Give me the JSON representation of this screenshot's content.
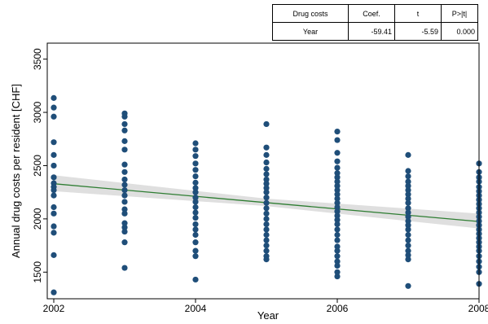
{
  "stat_table": {
    "headers": [
      "Drug costs",
      "Coef.",
      "t",
      "P>|t|"
    ],
    "row": [
      "Year",
      "-59.41",
      "-5.59",
      "0.000"
    ]
  },
  "colors": {
    "points": "#1f4e79",
    "fit_line": "#2e7d32",
    "ci_band": "#d9d9d9",
    "axis": "#000000"
  },
  "chart_data": {
    "type": "scatter",
    "title": "",
    "xlabel": "Year",
    "ylabel": "Annual drug costs per resident [CHF]",
    "xlim": [
      2002,
      2008
    ],
    "ylim": [
      1250,
      3650
    ],
    "xticks": [
      2002,
      2004,
      2006,
      2008
    ],
    "yticks": [
      1500,
      2000,
      2500,
      3000,
      3500
    ],
    "grid": false,
    "legend": "none",
    "fit_line": {
      "x": [
        2002,
        2008
      ],
      "y": [
        2330,
        1975
      ]
    },
    "ci_band": {
      "x": [
        2002,
        2005,
        2008
      ],
      "upper": [
        2410,
        2190,
        2050
      ],
      "lower": [
        2260,
        2120,
        1910
      ]
    },
    "series": [
      {
        "x": 2002,
        "values": [
          3135,
          3045,
          2960,
          2720,
          2600,
          2500,
          2390,
          2335,
          2300,
          2270,
          2220,
          2110,
          2050,
          1930,
          1870,
          1660,
          1310
        ]
      },
      {
        "x": 2003,
        "values": [
          2990,
          2960,
          2890,
          2830,
          2730,
          2650,
          2510,
          2440,
          2370,
          2320,
          2270,
          2220,
          2160,
          2090,
          2050,
          1960,
          1920,
          1880,
          1780,
          1540
        ]
      },
      {
        "x": 2004,
        "values": [
          2710,
          2650,
          2590,
          2520,
          2460,
          2400,
          2340,
          2290,
          2250,
          2200,
          2160,
          2110,
          2060,
          2010,
          1950,
          1900,
          1850,
          1780,
          1700,
          1650,
          1430
        ]
      },
      {
        "x": 2005,
        "values": [
          2890,
          2670,
          2600,
          2530,
          2470,
          2420,
          2370,
          2330,
          2290,
          2250,
          2200,
          2150,
          2100,
          2050,
          2000,
          1950,
          1900,
          1850,
          1800,
          1750,
          1700,
          1650,
          1620
        ]
      },
      {
        "x": 2006,
        "values": [
          2820,
          2740,
          2620,
          2540,
          2480,
          2430,
          2390,
          2350,
          2310,
          2270,
          2230,
          2190,
          2150,
          2110,
          2070,
          2030,
          1990,
          1950,
          1900,
          1850,
          1800,
          1740,
          1700,
          1650,
          1600,
          1560,
          1500,
          1460
        ]
      },
      {
        "x": 2007,
        "values": [
          2600,
          2450,
          2400,
          2350,
          2310,
          2270,
          2230,
          2190,
          2150,
          2100,
          2060,
          2020,
          1980,
          1940,
          1900,
          1850,
          1800,
          1750,
          1700,
          1660,
          1620,
          1370
        ]
      },
      {
        "x": 2008,
        "values": [
          2520,
          2440,
          2390,
          2350,
          2300,
          2260,
          2220,
          2180,
          2140,
          2100,
          2060,
          2020,
          1980,
          1940,
          1900,
          1860,
          1820,
          1780,
          1740,
          1700,
          1650,
          1600,
          1550,
          1500,
          1390
        ]
      }
    ]
  }
}
